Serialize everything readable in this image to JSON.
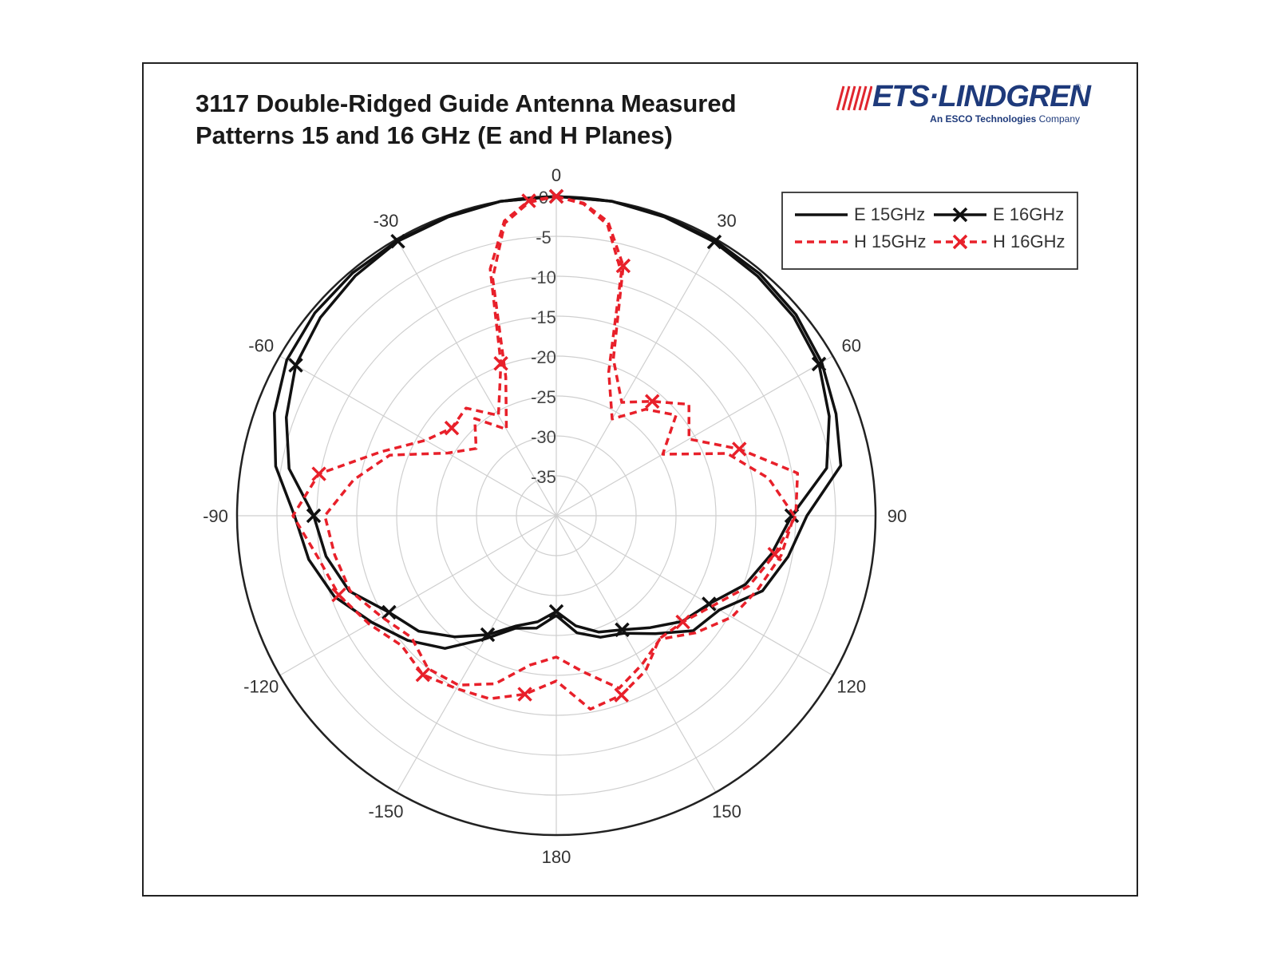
{
  "title": {
    "line1": "3117 Double-Ridged Guide Antenna Measured",
    "line2": "Patterns 15 and 16 GHz (E and H Planes)"
  },
  "logo": {
    "name": "ETS·LINDGREN",
    "registered": "®",
    "tagline_bold": "An ESCO Technologies",
    "tagline_rest": "Company",
    "icon": "antenna-waves-icon",
    "color": "#1e3a7b",
    "mark_color": "#e0262f"
  },
  "chart_data": {
    "type": "polar-line",
    "angle_ticks": [
      "0",
      "30",
      "60",
      "90",
      "120",
      "150",
      "180",
      "-150",
      "-120",
      "-90",
      "-60",
      "-30"
    ],
    "angle_tick_values": [
      0,
      30,
      60,
      90,
      120,
      150,
      180,
      -150,
      -120,
      -90,
      -60,
      -30
    ],
    "radial_ticks": [
      "0",
      "-5",
      "-10",
      "-15",
      "-20",
      "-25",
      "-30",
      "-35"
    ],
    "radial_tick_values": [
      0,
      -5,
      -10,
      -15,
      -20,
      -25,
      -30,
      -35
    ],
    "rlim": [
      -40,
      0
    ],
    "grid": true,
    "legend_position": "top-right",
    "series": [
      {
        "name": "E 15GHz",
        "color": "#111111",
        "style": "solid",
        "marker": "none",
        "points": [
          [
            -90,
            -7.2
          ],
          [
            -80,
            -4.3
          ],
          [
            -70,
            -2.4
          ],
          [
            -60,
            -1.0
          ],
          [
            -50,
            -0.5
          ],
          [
            -40,
            -0.3
          ],
          [
            -30,
            -0.2
          ],
          [
            -20,
            -0.1
          ],
          [
            -10,
            0
          ],
          [
            0,
            0
          ],
          [
            10,
            0
          ],
          [
            20,
            -0.1
          ],
          [
            30,
            -0.2
          ],
          [
            40,
            -0.4
          ],
          [
            50,
            -0.8
          ],
          [
            60,
            -1.6
          ],
          [
            70,
            -2.7
          ],
          [
            80,
            -3.8
          ],
          [
            90,
            -8.6
          ],
          [
            100,
            -10.5
          ],
          [
            110,
            -12.5
          ],
          [
            120,
            -16.4
          ],
          [
            130,
            -17.6
          ],
          [
            140,
            -20.7
          ],
          [
            150,
            -23.0
          ],
          [
            160,
            -23.8
          ],
          [
            170,
            -25.1
          ],
          [
            180,
            -27.5
          ],
          [
            -170,
            -25.7
          ],
          [
            -160,
            -25.0
          ],
          [
            -150,
            -22.2
          ],
          [
            -140,
            -18.3
          ],
          [
            -130,
            -15.7
          ],
          [
            -120,
            -13.3
          ],
          [
            -110,
            -10.4
          ],
          [
            -100,
            -8.5
          ]
        ]
      },
      {
        "name": "E 16GHz",
        "color": "#111111",
        "style": "solid",
        "marker": "x",
        "points": [
          [
            -90,
            -9.6
          ],
          [
            -80,
            -6.0
          ],
          [
            -70,
            -4.0
          ],
          [
            -60,
            -2.3
          ],
          [
            -50,
            -1.4
          ],
          [
            -40,
            -0.8
          ],
          [
            -30,
            -0.3
          ],
          [
            -20,
            -0.2
          ],
          [
            -10,
            0
          ],
          [
            0,
            0
          ],
          [
            10,
            0
          ],
          [
            20,
            -0.2
          ],
          [
            30,
            -0.4
          ],
          [
            40,
            -0.8
          ],
          [
            50,
            -1.2
          ],
          [
            60,
            -2.0
          ],
          [
            70,
            -3.6
          ],
          [
            80,
            -5.6
          ],
          [
            90,
            -10.5
          ],
          [
            100,
            -12.6
          ],
          [
            110,
            -14.8
          ],
          [
            120,
            -17.9
          ],
          [
            130,
            -19.4
          ],
          [
            140,
            -21.7
          ],
          [
            150,
            -23.5
          ],
          [
            160,
            -24.5
          ],
          [
            170,
            -26.0
          ],
          [
            180,
            -28.0
          ],
          [
            -170,
            -26.5
          ],
          [
            -160,
            -25.3
          ],
          [
            -150,
            -22.8
          ],
          [
            -140,
            -20.2
          ],
          [
            -130,
            -17.5
          ],
          [
            -120,
            -15.8
          ],
          [
            -110,
            -12.4
          ],
          [
            -100,
            -10.7
          ]
        ]
      },
      {
        "name": "H 15GHz",
        "color": "#e8202a",
        "style": "dashed",
        "marker": "none",
        "points": [
          [
            -90,
            -11.0
          ],
          [
            -80,
            -14.2
          ],
          [
            -70,
            -17.8
          ],
          [
            -60,
            -24.3
          ],
          [
            -50,
            -26.9
          ],
          [
            -40,
            -24.1
          ],
          [
            -30,
            -27.5
          ],
          [
            -20,
            -21.5
          ],
          [
            -15,
            -9.2
          ],
          [
            -10,
            -2.8
          ],
          [
            -5,
            -0.6
          ],
          [
            0,
            0
          ],
          [
            5,
            -0.8
          ],
          [
            10,
            -3.0
          ],
          [
            15,
            -8.5
          ],
          [
            20,
            -20.8
          ],
          [
            30,
            -26.0
          ],
          [
            40,
            -22.6
          ],
          [
            50,
            -20.4
          ],
          [
            60,
            -24.6
          ],
          [
            70,
            -17.2
          ],
          [
            80,
            -13.0
          ],
          [
            90,
            -10.2
          ],
          [
            100,
            -11.4
          ],
          [
            110,
            -13.1
          ],
          [
            120,
            -14.6
          ],
          [
            130,
            -17.2
          ],
          [
            140,
            -19.8
          ],
          [
            150,
            -18.5
          ],
          [
            160,
            -17.0
          ],
          [
            170,
            -20.1
          ],
          [
            180,
            -22.3
          ],
          [
            -170,
            -21.0
          ],
          [
            -160,
            -17.6
          ],
          [
            -150,
            -15.5
          ],
          [
            -140,
            -15.0
          ],
          [
            -130,
            -16.3
          ],
          [
            -120,
            -14.7
          ],
          [
            -110,
            -12.5
          ],
          [
            -100,
            -11.8
          ]
        ]
      },
      {
        "name": "H 16GHz",
        "color": "#e8202a",
        "style": "dashed",
        "marker": "x",
        "points": [
          [
            -90,
            -7.0
          ],
          [
            -80,
            -9.8
          ],
          [
            -70,
            -16.6
          ],
          [
            -60,
            -21.1
          ],
          [
            -50,
            -22.9
          ],
          [
            -40,
            -22.4
          ],
          [
            -30,
            -25.5
          ],
          [
            -20,
            -19.7
          ],
          [
            -15,
            -8.0
          ],
          [
            -10,
            -2.5
          ],
          [
            -5,
            -0.4
          ],
          [
            0,
            0
          ],
          [
            5,
            -0.7
          ],
          [
            10,
            -2.6
          ],
          [
            15,
            -7.6
          ],
          [
            20,
            -19.1
          ],
          [
            30,
            -23.6
          ],
          [
            40,
            -21.3
          ],
          [
            50,
            -18.3
          ],
          [
            60,
            -20.8
          ],
          [
            70,
            -15.6
          ],
          [
            80,
            -9.3
          ],
          [
            90,
            -10.0
          ],
          [
            100,
            -12.2
          ],
          [
            110,
            -14.3
          ],
          [
            120,
            -17.4
          ],
          [
            130,
            -19.3
          ],
          [
            140,
            -19.9
          ],
          [
            150,
            -17.6
          ],
          [
            160,
            -16.1
          ],
          [
            170,
            -15.4
          ],
          [
            180,
            -19.3
          ],
          [
            -170,
            -17.3
          ],
          [
            -160,
            -15.6
          ],
          [
            -150,
            -15.0
          ],
          [
            -140,
            -14.0
          ],
          [
            -130,
            -14.7
          ],
          [
            -120,
            -12.9
          ],
          [
            -110,
            -11.0
          ],
          [
            -100,
            -9.7
          ]
        ]
      }
    ]
  }
}
